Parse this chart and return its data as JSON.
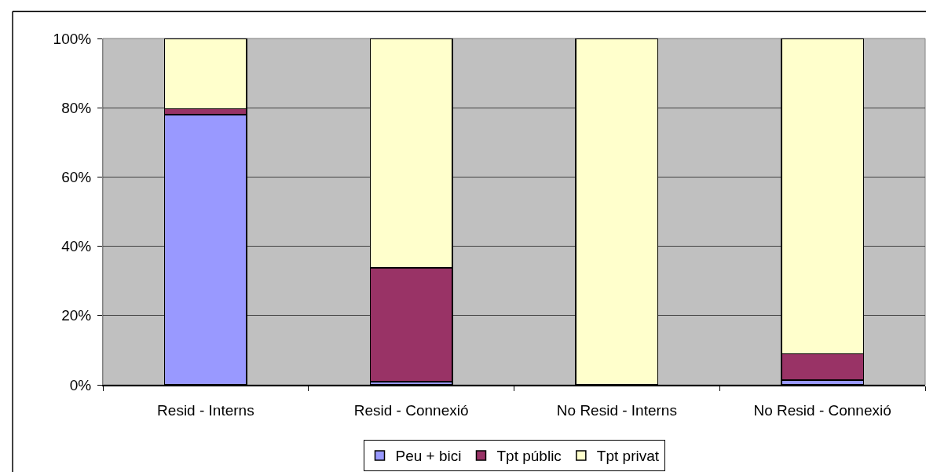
{
  "chart_data": {
    "type": "bar",
    "stacked": true,
    "categories": [
      "Resid - Interns",
      "Resid - Connexió",
      "No Resid - Interns",
      "No Resid - Connexió"
    ],
    "series": [
      {
        "name": "Peu + bici",
        "color": "#9999ff",
        "values": [
          78,
          0.9,
          0,
          1.4
        ]
      },
      {
        "name": "Tpt públic",
        "color": "#993366",
        "values": [
          1.7,
          32.9,
          0,
          7.6
        ]
      },
      {
        "name": "Tpt privat",
        "color": "#ffffcc",
        "values": [
          20.3,
          66.2,
          100,
          91.0
        ]
      }
    ],
    "ylim": [
      0,
      100
    ],
    "yticks": [
      {
        "value": 0,
        "label": "0%"
      },
      {
        "value": 20,
        "label": "20%"
      },
      {
        "value": 40,
        "label": "40%"
      },
      {
        "value": 60,
        "label": "60%"
      },
      {
        "value": 80,
        "label": "80%"
      },
      {
        "value": 100,
        "label": "100%"
      }
    ],
    "grid": "y",
    "legend": "bottom"
  }
}
